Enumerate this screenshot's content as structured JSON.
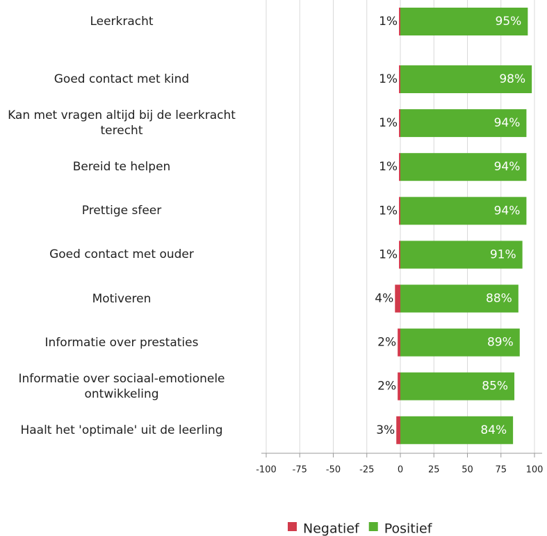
{
  "chart_data": {
    "type": "diverging-bar",
    "categories": [
      "Leerkracht",
      "Goed contact met kind",
      "Kan met vragen altijd bij de leerkracht terecht",
      "Bereid te helpen",
      "Prettige sfeer",
      "Goed contact met ouder",
      "Motiveren",
      "Informatie over prestaties",
      "Informatie over sociaal-emotionele ontwikkeling",
      "Haalt het 'optimale' uit de leerling"
    ],
    "series": [
      {
        "name": "Negatief",
        "color": "#d13b4b",
        "values": [
          -1,
          -1,
          -1,
          -1,
          -1,
          -1,
          -4,
          -2,
          -2,
          -3
        ],
        "value_labels": [
          "1%",
          "1%",
          "1%",
          "1%",
          "1%",
          "1%",
          "4%",
          "2%",
          "2%",
          "3%"
        ]
      },
      {
        "name": "Positief",
        "color": "#57b030",
        "values": [
          95,
          98,
          94,
          94,
          94,
          91,
          88,
          89,
          85,
          84
        ],
        "value_labels": [
          "95%",
          "98%",
          "94%",
          "94%",
          "94%",
          "91%",
          "88%",
          "89%",
          "85%",
          "84%"
        ]
      }
    ],
    "xlim": [
      -100,
      100
    ],
    "xticks": [
      -100,
      -75,
      -50,
      -25,
      0,
      25,
      50,
      75,
      100
    ],
    "grid": true
  }
}
